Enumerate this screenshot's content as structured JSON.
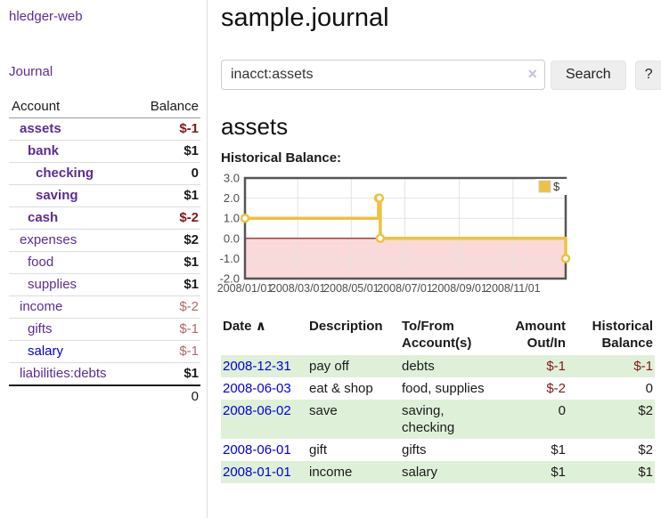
{
  "app": {
    "brand": "hledger-web"
  },
  "sidebar": {
    "journal_link": "Journal",
    "accounts_table": {
      "header": {
        "account": "Account",
        "balance": "Balance"
      },
      "rows": [
        {
          "name": "assets",
          "indent": 1,
          "bold": true,
          "balance": "$-1"
        },
        {
          "name": "bank",
          "indent": 2,
          "bold": true,
          "balance": "$1"
        },
        {
          "name": "checking",
          "indent": 3,
          "bold": true,
          "balance": "0"
        },
        {
          "name": "saving",
          "indent": 3,
          "bold": true,
          "balance": "$1"
        },
        {
          "name": "cash",
          "indent": 2,
          "bold": true,
          "balance": "$-2"
        },
        {
          "name": "expenses",
          "indent": 1,
          "bold": false,
          "balance": "$2"
        },
        {
          "name": "food",
          "indent": 2,
          "bold": false,
          "balance": "$1"
        },
        {
          "name": "supplies",
          "indent": 2,
          "bold": false,
          "balance": "$1"
        },
        {
          "name": "income",
          "indent": 1,
          "bold": false,
          "balance": "$-2"
        },
        {
          "name": "gifts",
          "indent": 2,
          "bold": false,
          "balance": "$-1"
        },
        {
          "name": "salary",
          "indent": 2,
          "bold": false,
          "balance": "$-1",
          "link_color": "blue"
        },
        {
          "name": "liabilities:debts",
          "indent": 1,
          "bold": false,
          "balance": "$1"
        }
      ],
      "total": "0"
    }
  },
  "main": {
    "title": "sample.journal",
    "search": {
      "value": "inacct:assets",
      "clear_icon": "×",
      "button_label": "Search",
      "help_label": "?"
    },
    "account_heading": "assets",
    "chart_label": "Historical Balance:"
  },
  "chart_data": {
    "type": "line",
    "title": "Historical Balance:",
    "xlim": [
      "2008-01-01",
      "2008-12-31"
    ],
    "ylim": [
      -2,
      3
    ],
    "y_ticks": [
      3.0,
      2.0,
      1.0,
      0.0,
      -1.0,
      -2.0
    ],
    "x_ticks": [
      "2008/01/01",
      "2008/03/01",
      "2008/05/01",
      "2008/07/01",
      "2008/09/01",
      "2008/11/01"
    ],
    "grid": true,
    "legend_position": "top-right",
    "series": [
      {
        "name": "$",
        "color": "#edc240",
        "steps": true,
        "points": [
          [
            "2008-01-01",
            1
          ],
          [
            "2008-06-01",
            2
          ],
          [
            "2008-06-02",
            2
          ],
          [
            "2008-06-03",
            0
          ],
          [
            "2008-12-31",
            -1
          ]
        ]
      }
    ],
    "negative_region_fill": "#f9d9d9",
    "zero_line_color": "#8b0000",
    "frame_color": "#555555",
    "grid_color": "#e3e3e3",
    "tick_color": "#4d4d4d"
  },
  "register": {
    "columns": {
      "date": "Date",
      "sort_icon": "∧",
      "description": "Description",
      "accounts": "To/From Account(s)",
      "amount": "Amount Out/In",
      "balance": "Historical Balance"
    },
    "rows": [
      {
        "date": "2008-12-31",
        "description": "pay off",
        "accounts": "debts",
        "amount": "$-1",
        "balance": "$-1"
      },
      {
        "date": "2008-06-03",
        "description": "eat & shop",
        "accounts": "food, supplies",
        "amount": "$-2",
        "balance": "0"
      },
      {
        "date": "2008-06-02",
        "description": "save",
        "accounts": "saving, checking",
        "amount": "0",
        "balance": "$2"
      },
      {
        "date": "2008-06-01",
        "description": "gift",
        "accounts": "gifts",
        "amount": "$1",
        "balance": "$2"
      },
      {
        "date": "2008-01-01",
        "description": "income",
        "accounts": "salary",
        "amount": "$1",
        "balance": "$1"
      }
    ]
  },
  "colors": {
    "link_purple": "#5c2d91",
    "link_blue": "#0000dd",
    "negative_strong": "#801818",
    "negative_soft": "#aa6c6c",
    "row_stripe_green": "#dff0d8",
    "series_gold": "#edc240"
  }
}
